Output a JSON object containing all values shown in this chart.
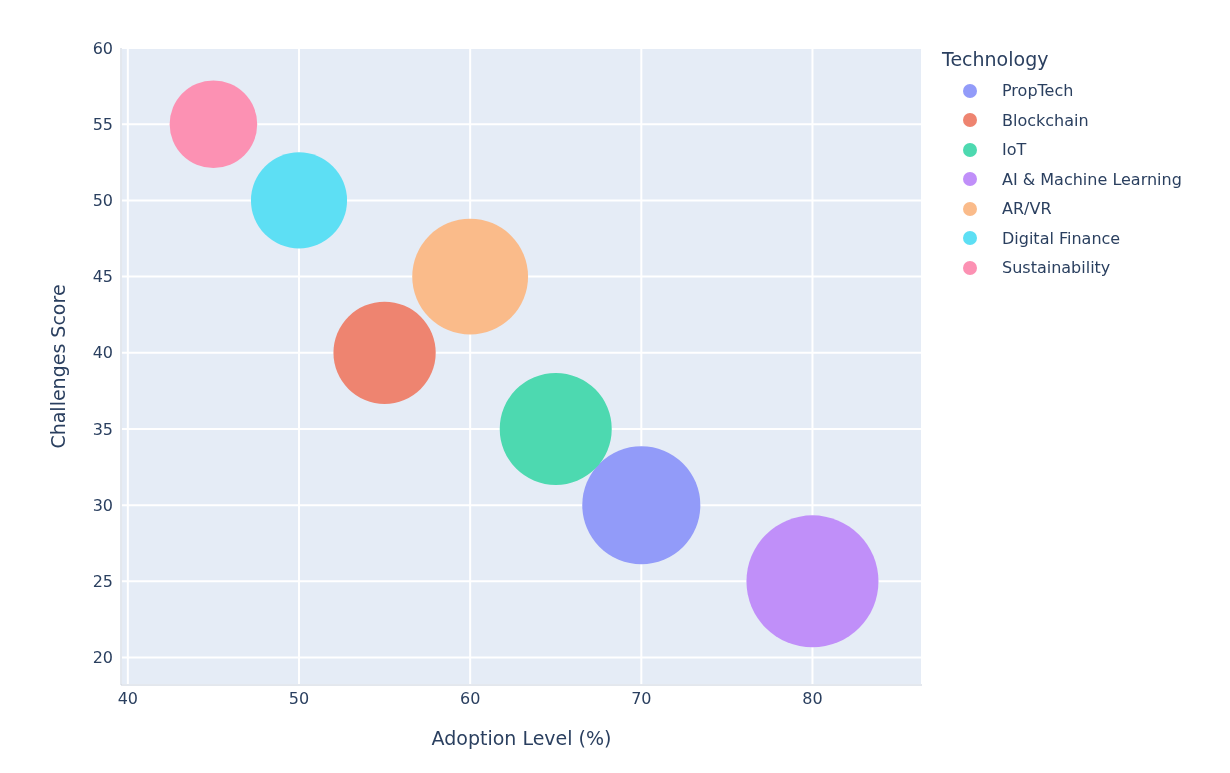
{
  "chart_data": {
    "type": "bubble",
    "xlabel": "Adoption Level (%)",
    "ylabel": "Challenges Score",
    "legend_title": "Technology",
    "legend": "top right",
    "grid": true,
    "xlim": [
      39.6,
      86.4
    ],
    "xticks": [
      40,
      50,
      60,
      70,
      80
    ],
    "ylim": [
      18.2,
      60
    ],
    "yticks": [
      20,
      25,
      30,
      35,
      40,
      45,
      50,
      55,
      60
    ],
    "series": [
      {
        "name": "PropTech",
        "color": "#929bf9",
        "x": [
          70
        ],
        "values": [
          30
        ],
        "sizes": [
          0.8
        ]
      },
      {
        "name": "Blockchain",
        "color": "#ee8470",
        "x": [
          55
        ],
        "values": [
          40
        ],
        "sizes": [
          0.6
        ]
      },
      {
        "name": "IoT",
        "color": "#4dd9b0",
        "x": [
          65
        ],
        "values": [
          35
        ],
        "sizes": [
          0.72
        ]
      },
      {
        "name": "AI & Machine Learning",
        "color": "#c08ff9",
        "x": [
          80
        ],
        "values": [
          25
        ],
        "sizes": [
          1
        ]
      },
      {
        "name": "AR/VR",
        "color": "#fabb8a",
        "x": [
          60
        ],
        "values": [
          45
        ],
        "sizes": [
          0.77
        ]
      },
      {
        "name": "Digital Finance",
        "color": "#5ddff4",
        "x": [
          50
        ],
        "values": [
          50
        ],
        "sizes": [
          0.53
        ]
      },
      {
        "name": "Sustainability",
        "color": "#fc91b3",
        "x": [
          45
        ],
        "values": [
          55
        ],
        "sizes": [
          0.44
        ]
      }
    ]
  }
}
